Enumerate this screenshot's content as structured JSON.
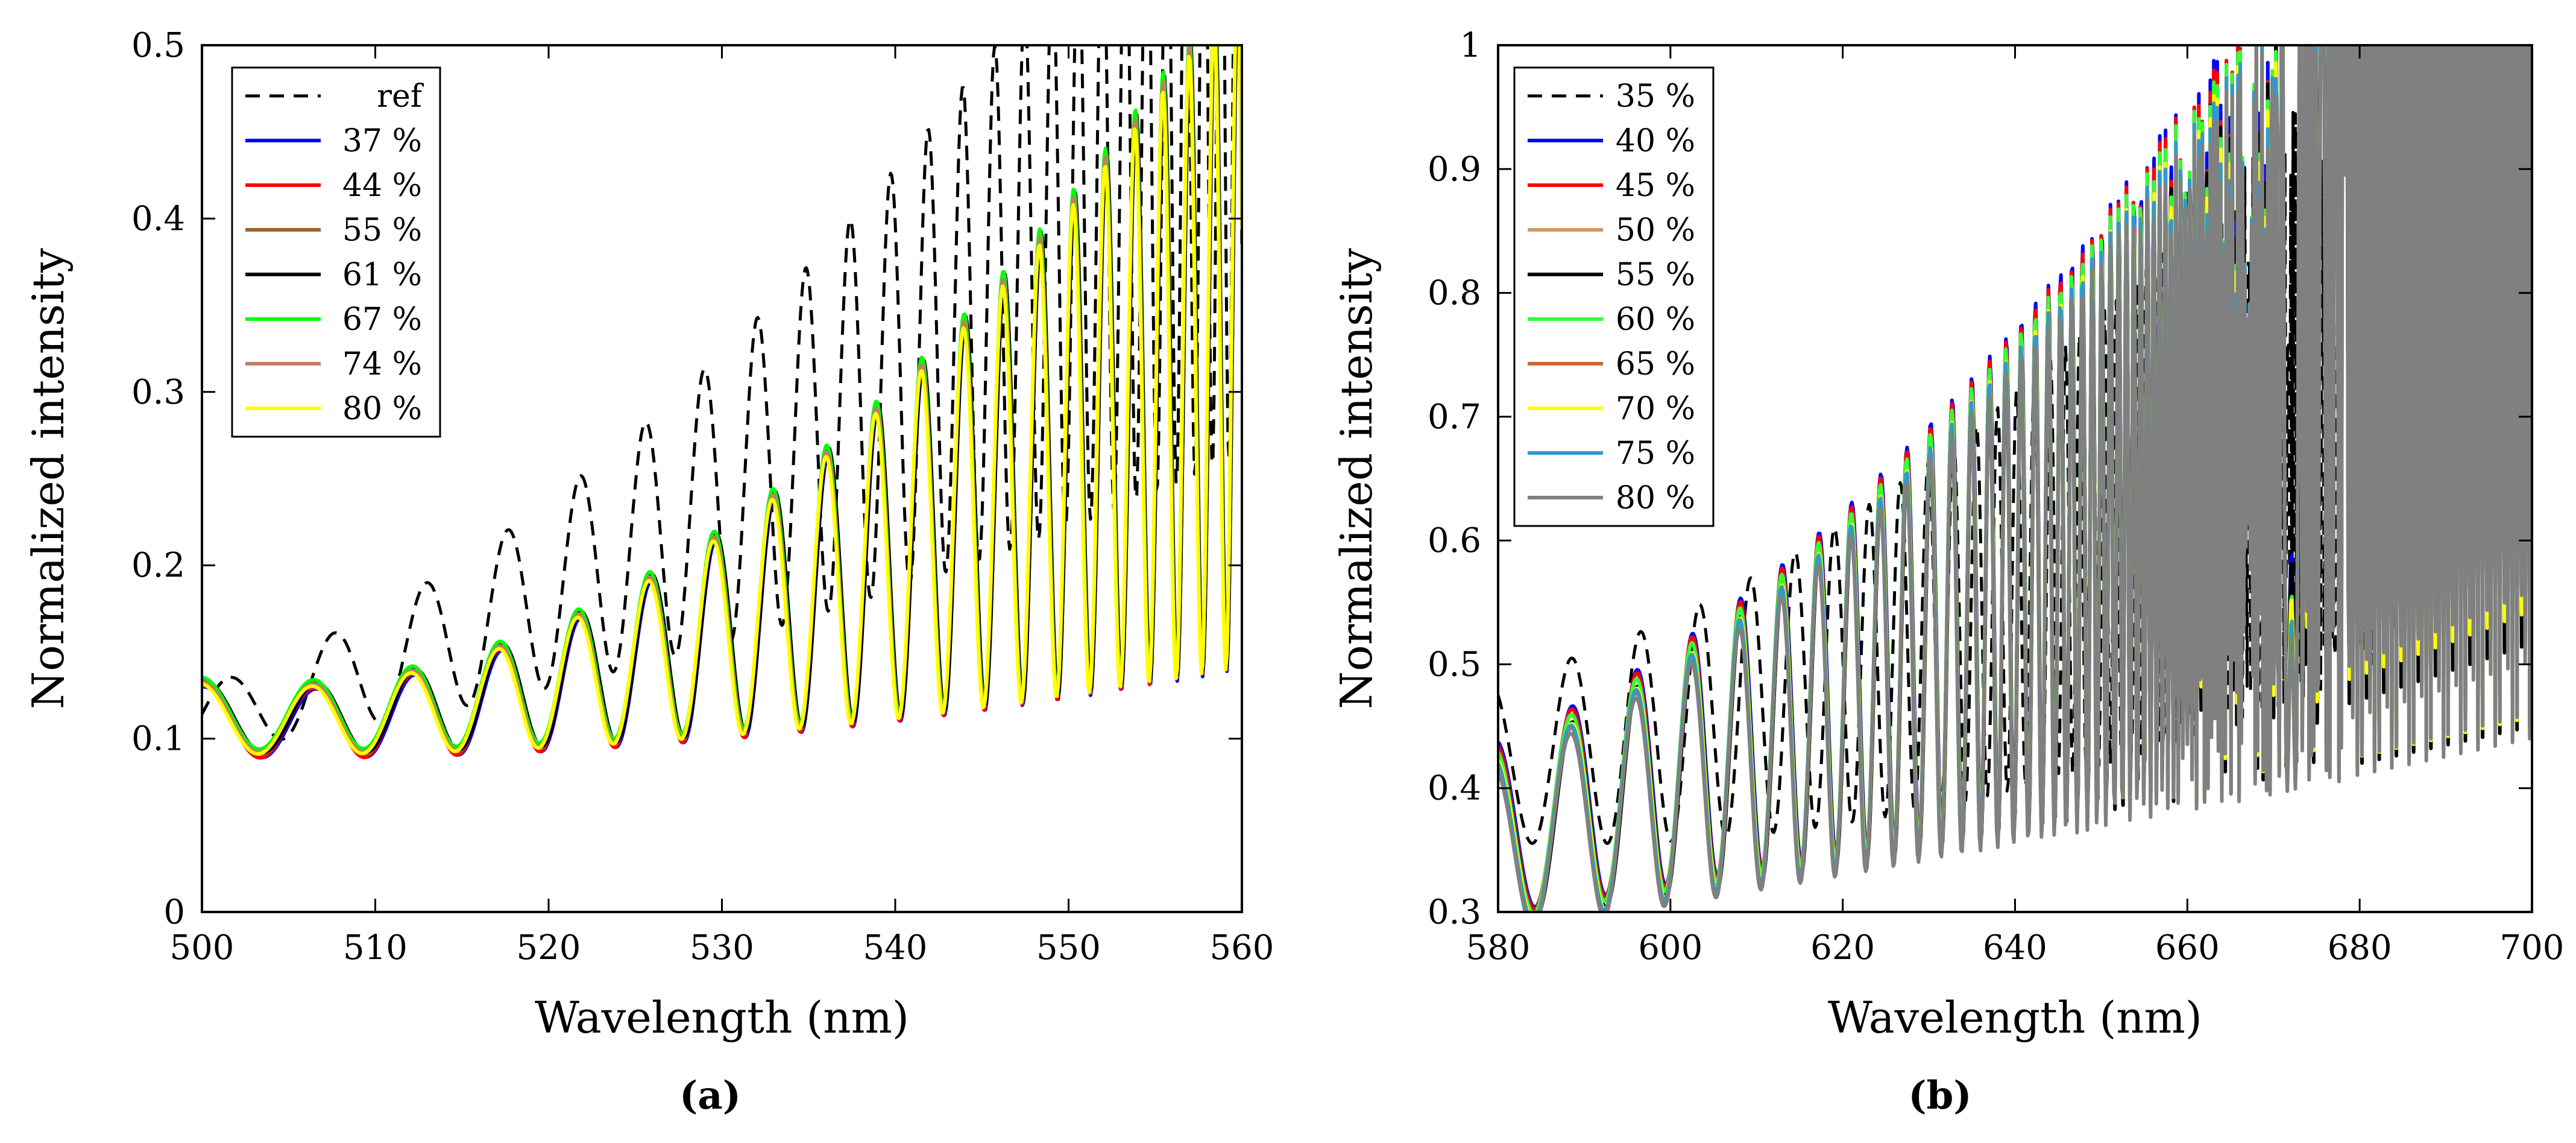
{
  "chart_data": [
    {
      "panel_label": "(a)",
      "type": "line",
      "xlabel": "Wavelength (nm)",
      "ylabel": "Normalized intensity",
      "xlim": [
        500,
        560
      ],
      "ylim": [
        0,
        0.5
      ],
      "xticks": [
        500,
        510,
        520,
        530,
        540,
        550,
        560
      ],
      "xtick_labels": [
        "500",
        "510",
        "520",
        "530",
        "540",
        "550",
        "560"
      ],
      "yticks": [
        0,
        0.1,
        0.2,
        0.3,
        0.4,
        0.5
      ],
      "ytick_labels": [
        "0",
        "0.1",
        "0.2",
        "0.3",
        "0.4",
        "0.5"
      ],
      "grid": false,
      "legend_position": "top-left",
      "model": {
        "ref": {
          "x0": 501.5,
          "period_start": 6.5,
          "period_change": 0.07,
          "mid_start": 0.115,
          "mid_slope": 0.0025,
          "mid_curve": 6.5e-05,
          "amp_start": 0.02,
          "amp_slope": 0.0011,
          "amp_curve": 4e-05
        },
        "measured": {
          "x0": 506.5,
          "period_start": 6.0,
          "period_change": 0.06,
          "mid_start": 0.112,
          "mid_slope": 0.00035,
          "mid_curve": 7.5e-05,
          "amp_start": 0.02,
          "amp_slope": 0.0003,
          "amp_curve": 5.8e-05
        }
      },
      "series": [
        {
          "name": "ref",
          "color": "#000000",
          "dash": true,
          "phase": 0,
          "offset": 0,
          "gain": 1
        },
        {
          "name": "37 %",
          "color": "#0000ff",
          "dash": false,
          "phase": -0.05,
          "offset": -0.002,
          "gain": 0.99
        },
        {
          "name": "44 %",
          "color": "#ff0000",
          "dash": false,
          "phase": 0.05,
          "offset": -0.004,
          "gain": 1.01
        },
        {
          "name": "55 %",
          "color": "#996633",
          "dash": false,
          "phase": 0.0,
          "offset": -0.001,
          "gain": 1.0
        },
        {
          "name": "61 %",
          "color": "#000000",
          "dash": false,
          "phase": -0.08,
          "offset": 0.0,
          "gain": 1.0
        },
        {
          "name": "67 %",
          "color": "#00ff00",
          "dash": false,
          "phase": 0.1,
          "offset": 0.002,
          "gain": 1.0
        },
        {
          "name": "74 %",
          "color": "#bf8060",
          "dash": false,
          "phase": 0.12,
          "offset": 0.001,
          "gain": 0.99
        },
        {
          "name": "80 %",
          "color": "#ffff00",
          "dash": false,
          "phase": 0.18,
          "offset": 0.001,
          "gain": 0.98
        }
      ]
    },
    {
      "panel_label": "(b)",
      "type": "line",
      "xlabel": "Wavelength (nm)",
      "ylabel": "Normalized intensity",
      "xlim": [
        580,
        700
      ],
      "ylim": [
        0.3,
        1
      ],
      "xticks": [
        580,
        600,
        620,
        640,
        660,
        680,
        700
      ],
      "xtick_labels": [
        "580",
        "600",
        "620",
        "640",
        "660",
        "680",
        "700"
      ],
      "yticks": [
        0.3,
        0.4,
        0.5,
        0.6,
        0.7,
        0.8,
        0.9,
        1
      ],
      "ytick_labels": [
        "0.3",
        "0.4",
        "0.5",
        "0.6",
        "0.7",
        "0.8",
        "0.9",
        "1"
      ],
      "grid": false,
      "legend_position": "top-left",
      "model": {
        "ref": {
          "x0": 588.5,
          "period_start": 8.7,
          "period_change": 0.085,
          "mid_start": 0.43,
          "mid_slope": 0.0012,
          "mid_curve": 2.55e-05,
          "amp_start": 0.075,
          "amp_slope": 0.0012,
          "amp_curve": 9e-06
        },
        "measured": {
          "x0": 588.5,
          "period_start": 8.2,
          "period_change": 0.0856,
          "mid_start": 0.374,
          "mid_slope": 0.0023,
          "mid_curve": 2.4e-05,
          "amp_start": 0.077,
          "amp_slope": 0.00115,
          "amp_curve": 2.25e-05
        }
      },
      "series": [
        {
          "name": "35 %",
          "color": "#000000",
          "dash": true,
          "phase": 0,
          "offset": 0,
          "gain": 1
        },
        {
          "name": "40 %",
          "color": "#0000ff",
          "dash": false,
          "phase": -0.05,
          "offset": 0.006,
          "gain": 1.02
        },
        {
          "name": "45 %",
          "color": "#ff0000",
          "dash": false,
          "phase": 0.0,
          "offset": 0.006,
          "gain": 1.015
        },
        {
          "name": "50 %",
          "color": "#cc9966",
          "dash": false,
          "phase": 0.05,
          "offset": 0.0,
          "gain": 1.0
        },
        {
          "name": "55 %",
          "color": "#000000",
          "dash": false,
          "phase": -0.08,
          "offset": 0.002,
          "gain": 1.0
        },
        {
          "name": "60 %",
          "color": "#33ff33",
          "dash": false,
          "phase": 0.04,
          "offset": 0.004,
          "gain": 1.01
        },
        {
          "name": "65 %",
          "color": "#cc6633",
          "dash": false,
          "phase": 0.06,
          "offset": 0.0,
          "gain": 0.995
        },
        {
          "name": "70 %",
          "color": "#ffff00",
          "dash": false,
          "phase": 0.02,
          "offset": 0.001,
          "gain": 1.0
        },
        {
          "name": "75 %",
          "color": "#3399cc",
          "dash": false,
          "phase": 0.08,
          "offset": 0.0,
          "gain": 1.0
        },
        {
          "name": "80 %",
          "color": "#808080",
          "dash": false,
          "phase": 0.1,
          "offset": -0.002,
          "gain": 0.99
        }
      ]
    }
  ]
}
